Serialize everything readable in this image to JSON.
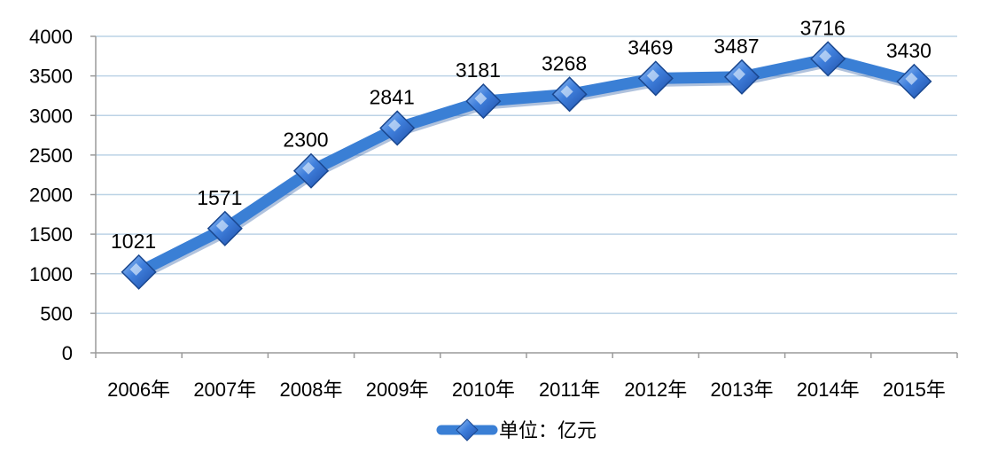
{
  "chart_data": {
    "type": "line",
    "categories": [
      "2006年",
      "2007年",
      "2008年",
      "2009年",
      "2010年",
      "2011年",
      "2012年",
      "2013年",
      "2014年",
      "2015年"
    ],
    "series": [
      {
        "name": "单位：亿元",
        "values": [
          1021,
          1571,
          2300,
          2841,
          3181,
          3268,
          3469,
          3487,
          3716,
          3430
        ]
      }
    ],
    "data_labels": [
      "1021",
      "1571",
      "2300",
      "2841",
      "3181",
      "3268",
      "3469",
      "3487",
      "3716",
      "3430"
    ],
    "y_ticks": [
      "0",
      "500",
      "1000",
      "1500",
      "2000",
      "2500",
      "3000",
      "3500",
      "4000"
    ],
    "ylim": [
      0,
      4000
    ],
    "grid": true,
    "legend_position": "bottom",
    "line_color": "#3a7fd5",
    "marker_color": "#2b62c0",
    "grid_color": "#bcd3e6"
  }
}
